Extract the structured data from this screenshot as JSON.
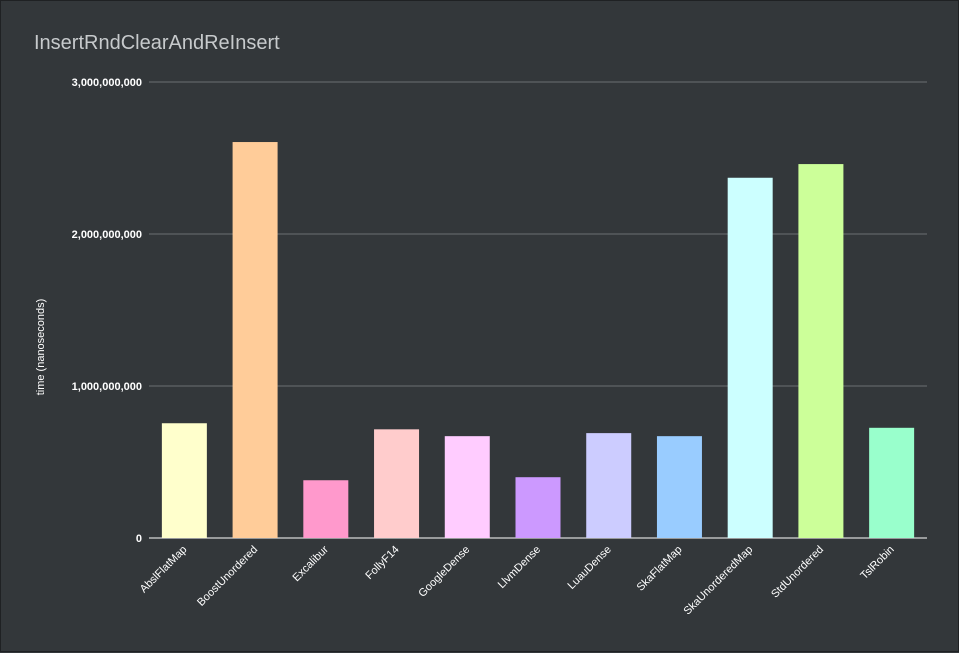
{
  "chart_data": {
    "type": "bar",
    "title": "InsertRndClearAndReInsert",
    "xlabel": "",
    "ylabel": "time (nanoseconds)",
    "ylim": [
      0,
      3000000000
    ],
    "yticks": [
      0,
      1000000000,
      2000000000,
      3000000000
    ],
    "ytick_labels": [
      "0",
      "1,000,000,000",
      "2,000,000,000",
      "3,000,000,000"
    ],
    "grid": true,
    "legend": "none",
    "categories": [
      "AbslFlatMap",
      "BoostUnordered",
      "Excalibur",
      "FollyF14",
      "GoogleDense",
      "LlvmDense",
      "LuauDense",
      "SkaFlatMap",
      "SkaUnorderedMap",
      "StdUnordered",
      "TslRobin"
    ],
    "values": [
      755000000,
      2605000000,
      380000000,
      715000000,
      670000000,
      400000000,
      690000000,
      670000000,
      2370000000,
      2460000000,
      725000000
    ],
    "colors": [
      "#ffffcc",
      "#ffcc99",
      "#ff99cc",
      "#ffcccc",
      "#ffccff",
      "#cc99ff",
      "#ccccff",
      "#99ccff",
      "#ccffff",
      "#ccff99",
      "#99ffcc"
    ]
  },
  "colors": {
    "background": "#33373a",
    "gridline": "#6b6f72",
    "text": "#ffffff",
    "title": "#c7cacc"
  }
}
